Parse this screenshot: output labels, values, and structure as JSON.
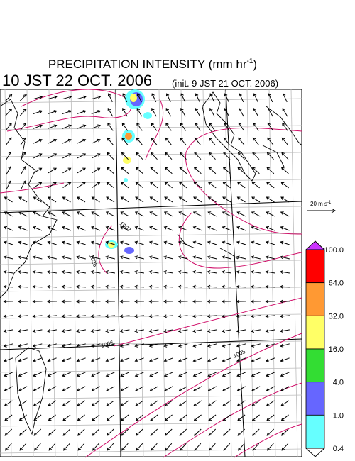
{
  "header": {
    "title": "PRECIPITATION INTENSITY (mm hr",
    "title_exponent": "-1",
    "title_close": ")",
    "valid_time": "10 JST 22 OCT. 2006",
    "init_time": "(init. 9 JST 21 OCT. 2006)"
  },
  "wind_scale": {
    "label": "20 m s",
    "exponent": "-1"
  },
  "colorbar": {
    "labels": [
      "100.0",
      "64.0",
      "32.0",
      "16.0",
      "4.0",
      "1.0",
      "0.4"
    ]
  },
  "contour_labels": [
    "1007",
    "1025",
    "1006",
    "1005"
  ]
}
